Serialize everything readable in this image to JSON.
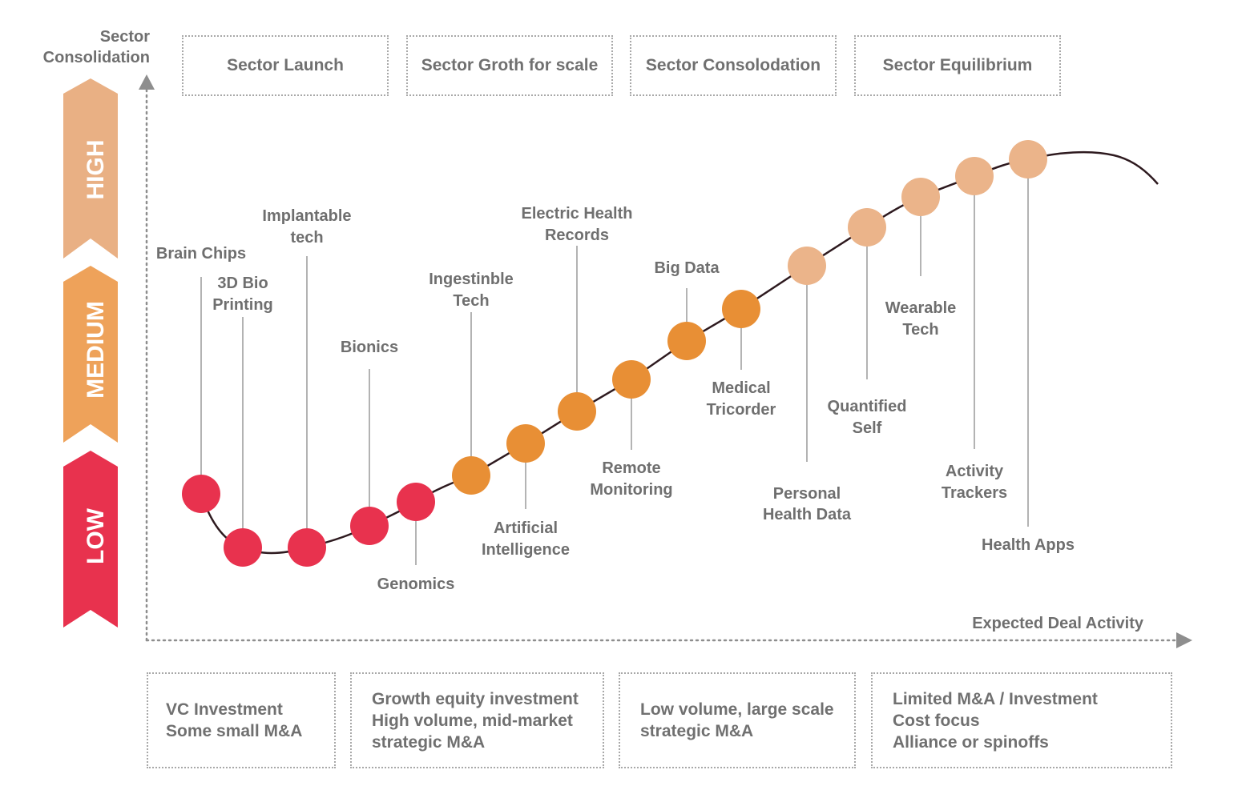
{
  "y_axis_label": [
    "Sector",
    "Consolidation"
  ],
  "x_axis_label": "Expected Deal Activity",
  "phases": [
    "Sector Launch",
    "Sector Groth for scale",
    "Sector Consolodation",
    "Sector Equilibrium"
  ],
  "levels": [
    {
      "label": "HIGH",
      "color": "#e9b084"
    },
    {
      "label": "MEDIUM",
      "color": "#eea25a"
    },
    {
      "label": "LOW",
      "color": "#e8324e"
    }
  ],
  "curve_color": "#2e1a1f",
  "technologies": [
    {
      "name": "Brain Chips",
      "level": "low",
      "label_lines": [
        "Brain Chips"
      ]
    },
    {
      "name": "3D Bio Printing",
      "level": "low",
      "label_lines": [
        "3D Bio",
        "Printing"
      ]
    },
    {
      "name": "Implantable tech",
      "level": "low",
      "label_lines": [
        "Implantable",
        "tech"
      ]
    },
    {
      "name": "Bionics",
      "level": "low",
      "label_lines": [
        "Bionics"
      ]
    },
    {
      "name": "Genomics",
      "level": "low",
      "label_lines": [
        "Genomics"
      ]
    },
    {
      "name": "Ingestinble Tech",
      "level": "medium",
      "label_lines": [
        "Ingestinble",
        "Tech"
      ]
    },
    {
      "name": "Artificial Intelligence",
      "level": "medium",
      "label_lines": [
        "Artificial",
        "Intelligence"
      ]
    },
    {
      "name": "Electric Health Records",
      "level": "medium",
      "label_lines": [
        "Electric Health",
        "Records"
      ]
    },
    {
      "name": "Remote Monitoring",
      "level": "medium",
      "label_lines": [
        "Remote",
        "Monitoring"
      ]
    },
    {
      "name": "Big Data",
      "level": "medium",
      "label_lines": [
        "Big Data"
      ]
    },
    {
      "name": "Medical Tricorder",
      "level": "medium",
      "label_lines": [
        "Medical",
        "Tricorder"
      ]
    },
    {
      "name": "Personal Health Data",
      "level": "high",
      "label_lines": [
        "Personal",
        "Health Data"
      ]
    },
    {
      "name": "Quantified Self",
      "level": "high",
      "label_lines": [
        "Quantified",
        "Self"
      ]
    },
    {
      "name": "Wearable Tech",
      "level": "high",
      "label_lines": [
        "Wearable",
        "Tech"
      ]
    },
    {
      "name": "Activity Trackers",
      "level": "high",
      "label_lines": [
        "Activity",
        "Trackers"
      ]
    },
    {
      "name": "Health Apps",
      "level": "high",
      "label_lines": [
        "Health Apps"
      ]
    }
  ],
  "level_colors": {
    "low": "#e8324e",
    "medium": "#e88f35",
    "high": "#ebb48a"
  },
  "deal_types": [
    {
      "lines": [
        "VC Investment",
        "Some small M&A"
      ]
    },
    {
      "lines": [
        "Growth equity investment",
        "High volume, mid-market",
        "strategic M&A"
      ]
    },
    {
      "lines": [
        "Low volume, large scale",
        "strategic M&A"
      ]
    },
    {
      "lines": [
        "Limited M&A / Investment",
        "Cost focus",
        "Alliance or spinoffs"
      ]
    }
  ]
}
